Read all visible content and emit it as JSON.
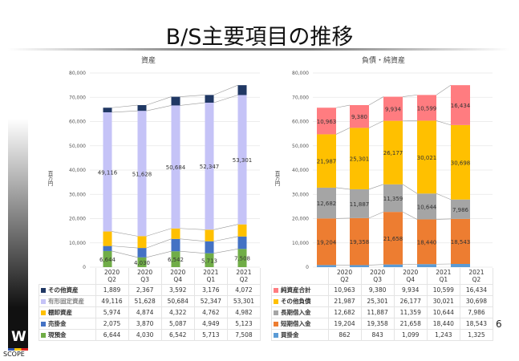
{
  "title": "B/S主要項目の推移",
  "page_number": "6",
  "logo_text": "SCOPE",
  "chart_data": [
    {
      "type": "bar",
      "stacked": true,
      "title": "資産",
      "ylabel": "百万円",
      "ylim": [
        0,
        80000
      ],
      "yticks": [
        "0",
        "10,000",
        "20,000",
        "30,000",
        "40,000",
        "50,000",
        "60,000",
        "70,000",
        "80,000"
      ],
      "categories": [
        [
          "2020",
          "Q2"
        ],
        [
          "2020",
          "Q3"
        ],
        [
          "2020",
          "Q4"
        ],
        [
          "2021",
          "Q1"
        ],
        [
          "2021",
          "Q2"
        ]
      ],
      "legend": "bottom-table",
      "series": [
        {
          "name": "現預金",
          "color": "#70ad47",
          "values": [
            6644,
            4030,
            6542,
            5713,
            7508
          ],
          "labels": [
            "6,644",
            "4,030",
            "6,542",
            "5,713",
            "7,508"
          ],
          "show_labels": true
        },
        {
          "name": "売掛金",
          "color": "#4472c4",
          "values": [
            2075,
            3870,
            5087,
            4949,
            5123
          ],
          "labels": [
            "2,075",
            "3,870",
            "5,087",
            "4,949",
            "5,123"
          ],
          "show_labels": false
        },
        {
          "name": "棚卸資産",
          "color": "#ffc000",
          "values": [
            5974,
            4874,
            4322,
            4762,
            4982
          ],
          "labels": [
            "5,974",
            "4,874",
            "4,322",
            "4,762",
            "4,982"
          ],
          "show_labels": false
        },
        {
          "name": "有形固定資産",
          "color": "#c5c3f7",
          "values": [
            49116,
            51628,
            50684,
            52347,
            53301
          ],
          "labels": [
            "49,116",
            "51,628",
            "50,684",
            "52,347",
            "53,301"
          ],
          "show_labels": true
        },
        {
          "name": "その他資産",
          "color": "#203864",
          "values": [
            1889,
            2367,
            3592,
            3176,
            4072
          ],
          "labels": [
            "1,889",
            "2,367",
            "3,592",
            "3,176",
            "4,072"
          ],
          "show_labels": false
        }
      ]
    },
    {
      "type": "bar",
      "stacked": true,
      "title": "負債・純資産",
      "ylabel": "百万円",
      "ylim": [
        0,
        80000
      ],
      "yticks": [
        "0",
        "10,000",
        "20,000",
        "30,000",
        "40,000",
        "50,000",
        "60,000",
        "70,000",
        "80,000"
      ],
      "categories": [
        [
          "2020",
          "Q2"
        ],
        [
          "2020",
          "Q3"
        ],
        [
          "2020",
          "Q4"
        ],
        [
          "2021",
          "Q1"
        ],
        [
          "2021",
          "Q2"
        ]
      ],
      "legend": "bottom-table",
      "series": [
        {
          "name": "買掛金",
          "color": "#5b9bd5",
          "values": [
            862,
            843,
            1099,
            1243,
            1325
          ],
          "labels": [
            "862",
            "843",
            "1,099",
            "1,243",
            "1,325"
          ],
          "show_labels": false
        },
        {
          "name": "短期借入金",
          "color": "#ed7d31",
          "values": [
            19204,
            19358,
            21658,
            18440,
            18543
          ],
          "labels": [
            "19,204",
            "19,358",
            "21,658",
            "18,440",
            "18,543"
          ],
          "show_labels": true
        },
        {
          "name": "長期借入金",
          "color": "#a5a5a5",
          "values": [
            12682,
            11887,
            11359,
            10644,
            7986
          ],
          "labels": [
            "12,682",
            "11,887",
            "11,359",
            "10,644",
            "7,986"
          ],
          "show_labels": true
        },
        {
          "name": "その他負債",
          "color": "#ffc000",
          "values": [
            21987,
            25301,
            26177,
            30021,
            30698
          ],
          "labels": [
            "21,987",
            "25,301",
            "26,177",
            "30,021",
            "30,698"
          ],
          "show_labels": true
        },
        {
          "name": "純資産合計",
          "color": "#ff7c80",
          "values": [
            10963,
            9380,
            9934,
            10599,
            16434
          ],
          "labels": [
            "10,963",
            "9,380",
            "9,934",
            "10,599",
            "16,434"
          ],
          "show_labels": true
        }
      ]
    }
  ]
}
